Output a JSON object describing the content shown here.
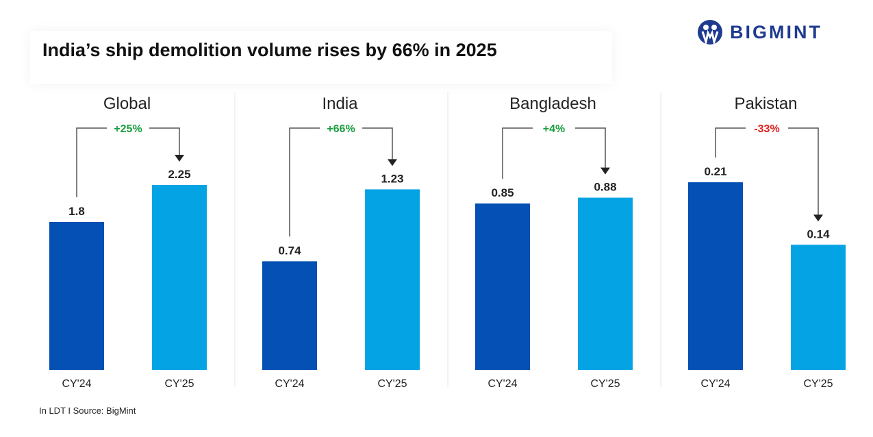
{
  "title": "India’s ship demolition volume rises by 66% in 2025",
  "logo": {
    "text": "BIGMINT",
    "color": "#1f3b8f"
  },
  "footer": "In LDT  I  Source: BigMint",
  "chart_data": {
    "type": "bar",
    "unit": "LDT",
    "categories": [
      "CY'24",
      "CY'25"
    ],
    "colors": {
      "CY'24": "#0450b4",
      "CY'25": "#04a4e4",
      "positive": "#1a9e3f",
      "negative": "#e02020"
    },
    "grid": false,
    "panels": [
      {
        "title": "Global",
        "values": [
          1.8,
          2.25
        ],
        "value_labels": [
          "1.8",
          "2.25"
        ],
        "change": "+25%",
        "change_sign": "positive",
        "ylim": [
          0,
          2.5
        ]
      },
      {
        "title": "India",
        "values": [
          0.74,
          1.23
        ],
        "value_labels": [
          "0.74",
          "1.23"
        ],
        "change": "+66%",
        "change_sign": "positive",
        "ylim": [
          0,
          1.4
        ]
      },
      {
        "title": "Bangladesh",
        "values": [
          0.85,
          0.88
        ],
        "value_labels": [
          "0.85",
          "0.88"
        ],
        "change": "+4%",
        "change_sign": "positive",
        "ylim": [
          0,
          1.05
        ]
      },
      {
        "title": "Pakistan",
        "values": [
          0.21,
          0.14
        ],
        "value_labels": [
          "0.21",
          "0.14"
        ],
        "change": "-33%",
        "change_sign": "negative",
        "ylim": [
          0,
          0.23
        ]
      }
    ]
  }
}
